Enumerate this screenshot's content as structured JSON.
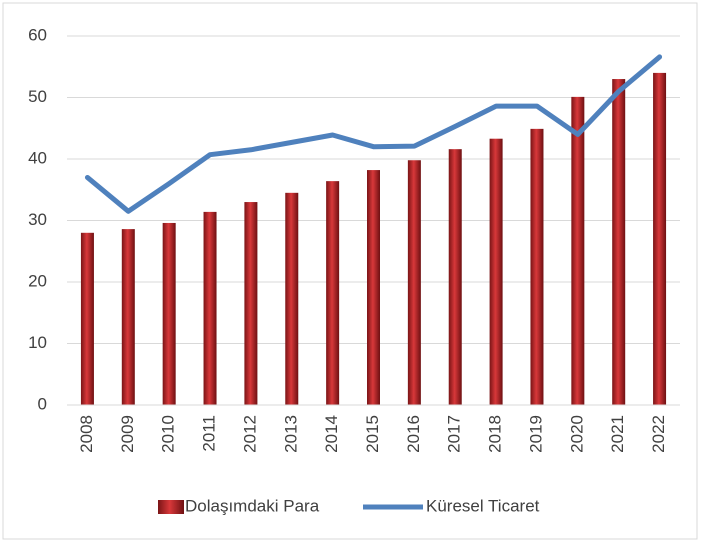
{
  "chart_data": {
    "type": "bar_line",
    "categories": [
      "2008",
      "2009",
      "2010",
      "2011",
      "2012",
      "2013",
      "2014",
      "2015",
      "2016",
      "2017",
      "2018",
      "2019",
      "2020",
      "2021",
      "2022"
    ],
    "series": [
      {
        "name": "Dolaşımdaki Para",
        "type": "bar",
        "color": "#c0282a",
        "values": [
          28,
          28.6,
          29.6,
          31.4,
          33,
          34.5,
          36.4,
          38.2,
          39.8,
          41.6,
          43.3,
          44.9,
          50.1,
          53,
          54
        ]
      },
      {
        "name": "Küresel Ticaret",
        "type": "line",
        "color": "#4f81bd",
        "values": [
          37,
          31.5,
          36,
          40.7,
          41.5,
          42.7,
          43.9,
          42,
          42.1,
          45.3,
          48.6,
          48.6,
          44,
          51,
          56.6
        ]
      }
    ],
    "ylim": [
      0,
      60
    ],
    "yticks": [
      0,
      10,
      20,
      30,
      40,
      50,
      60
    ],
    "grid": true,
    "legend": "bottom"
  }
}
